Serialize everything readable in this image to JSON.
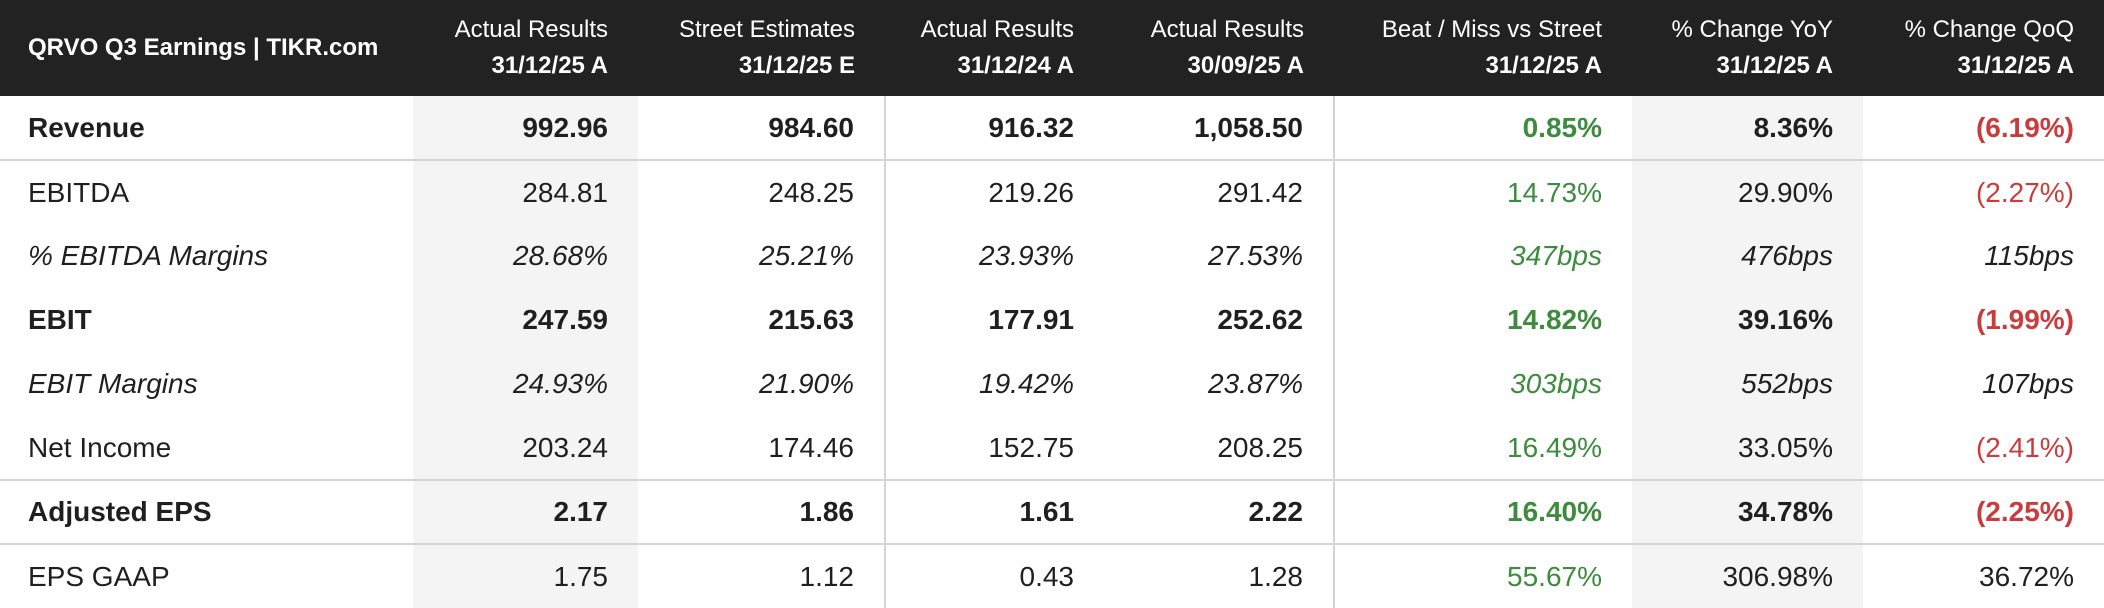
{
  "table": {
    "title": "QRVO Q3 Earnings | TIKR.com",
    "columns": [
      {
        "top": "Actual Results",
        "sub": "31/12/25 A"
      },
      {
        "top": "Street Estimates",
        "sub": "31/12/25 E"
      },
      {
        "top": "Actual Results",
        "sub": "31/12/24 A"
      },
      {
        "top": "Actual Results",
        "sub": "30/09/25 A"
      },
      {
        "top": "Beat / Miss vs Street",
        "sub": "31/12/25 A"
      },
      {
        "top": "% Change YoY",
        "sub": "31/12/25 A"
      },
      {
        "top": "% Change QoQ",
        "sub": "31/12/25 A"
      }
    ],
    "rows": [
      {
        "label": "Revenue",
        "values": [
          "992.96",
          "984.60",
          "916.32",
          "1,058.50",
          "0.85%",
          "8.36%",
          "(6.19%)"
        ]
      },
      {
        "label": "EBITDA",
        "values": [
          "284.81",
          "248.25",
          "219.26",
          "291.42",
          "14.73%",
          "29.90%",
          "(2.27%)"
        ]
      },
      {
        "label": "% EBITDA Margins",
        "values": [
          "28.68%",
          "25.21%",
          "23.93%",
          "27.53%",
          "347bps",
          "476bps",
          "115bps"
        ]
      },
      {
        "label": "EBIT",
        "values": [
          "247.59",
          "215.63",
          "177.91",
          "252.62",
          "14.82%",
          "39.16%",
          "(1.99%)"
        ]
      },
      {
        "label": "EBIT Margins",
        "values": [
          "24.93%",
          "21.90%",
          "19.42%",
          "23.87%",
          "303bps",
          "552bps",
          "107bps"
        ]
      },
      {
        "label": "Net Income",
        "values": [
          "203.24",
          "174.46",
          "152.75",
          "208.25",
          "16.49%",
          "33.05%",
          "(2.41%)"
        ]
      },
      {
        "label": "Adjusted EPS",
        "values": [
          "2.17",
          "1.86",
          "1.61",
          "2.22",
          "16.40%",
          "34.78%",
          "(2.25%)"
        ]
      },
      {
        "label": "EPS GAAP",
        "values": [
          "1.75",
          "1.12",
          "0.43",
          "1.28",
          "55.67%",
          "306.98%",
          "36.72%"
        ]
      }
    ]
  },
  "colors": {
    "header_bg": "#222222",
    "positive": "#3d8b3d",
    "negative": "#cc3b3b",
    "shaded_column": "#f4f4f4"
  }
}
